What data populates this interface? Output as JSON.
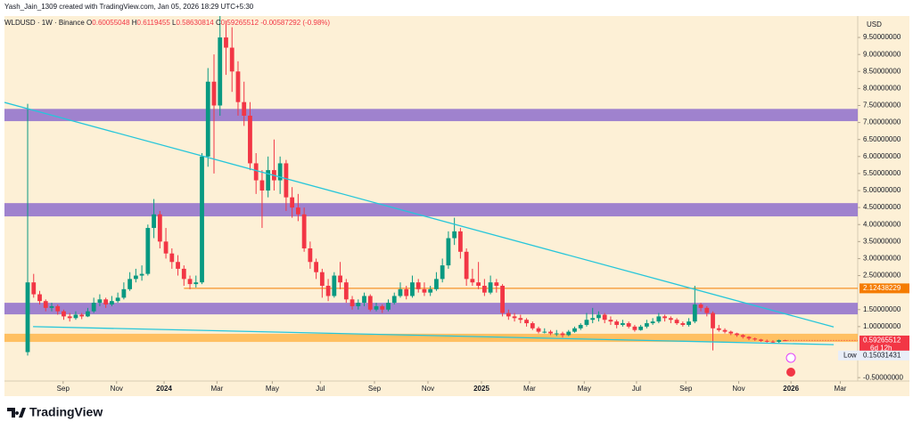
{
  "chart_data": {
    "type": "candlestick",
    "credit": "Yash_Jain_1309 created with TradingView.com, Jan 05, 2026 18:29 UTC+5:30",
    "symbol": "WLDUSD · 1W · Binance",
    "ohlc_labels": [
      "O",
      "H",
      "L",
      "C"
    ],
    "change_label": "-0.00587292 (-0.98%)",
    "currency": "USD",
    "brand": "TradingView",
    "up_color": "#089981",
    "down_color": "#f23645",
    "x": [
      0,
      1,
      2,
      3,
      4,
      5,
      6,
      7,
      8,
      9,
      10,
      11,
      12,
      13,
      14,
      15,
      16,
      17,
      18,
      19,
      20,
      21,
      22,
      23,
      24,
      25,
      26,
      27,
      28,
      29,
      30,
      31,
      32,
      33,
      34,
      35,
      36,
      37,
      38,
      39,
      40,
      41,
      42,
      43,
      44,
      45,
      46,
      47,
      48,
      49,
      50,
      51,
      52,
      53,
      54,
      55,
      56,
      57,
      58,
      59,
      60,
      61,
      62,
      63,
      64,
      65,
      66,
      67,
      68,
      69,
      70,
      71,
      72,
      73,
      74,
      75,
      76,
      77,
      78,
      79,
      80,
      81,
      82,
      83,
      84,
      85,
      86,
      87,
      88,
      89,
      90,
      91,
      92,
      93,
      94,
      95,
      96,
      97,
      98,
      99,
      100,
      101,
      102,
      103,
      104,
      105,
      106,
      107,
      108,
      109,
      110,
      111,
      112,
      113,
      114,
      115,
      116,
      117,
      118,
      119,
      120,
      121,
      122,
      123,
      124,
      125,
      126
    ],
    "ohlc": [
      [
        0.25,
        7.55,
        0.15031431,
        2.3
      ],
      [
        2.3,
        2.55,
        1.85,
        1.95
      ],
      [
        1.95,
        2.05,
        1.65,
        1.75
      ],
      [
        1.75,
        1.8,
        1.45,
        1.55
      ],
      [
        1.55,
        1.7,
        1.45,
        1.6
      ],
      [
        1.6,
        1.65,
        1.35,
        1.45
      ],
      [
        1.45,
        1.5,
        1.2,
        1.3
      ],
      [
        1.3,
        1.4,
        1.15,
        1.25
      ],
      [
        1.25,
        1.45,
        1.2,
        1.35
      ],
      [
        1.35,
        1.4,
        1.22,
        1.3
      ],
      [
        1.3,
        1.55,
        1.28,
        1.45
      ],
      [
        1.45,
        1.85,
        1.4,
        1.7
      ],
      [
        1.7,
        1.95,
        1.6,
        1.8
      ],
      [
        1.8,
        1.85,
        1.55,
        1.65
      ],
      [
        1.65,
        1.9,
        1.6,
        1.75
      ],
      [
        1.75,
        2.0,
        1.7,
        1.85
      ],
      [
        1.85,
        2.3,
        1.8,
        2.1
      ],
      [
        2.1,
        2.6,
        2.05,
        2.4
      ],
      [
        2.4,
        2.7,
        2.3,
        2.5
      ],
      [
        2.5,
        2.8,
        2.35,
        2.55
      ],
      [
        2.55,
        4.0,
        2.5,
        3.9
      ],
      [
        3.9,
        4.75,
        3.6,
        4.3
      ],
      [
        4.3,
        4.4,
        3.3,
        3.5
      ],
      [
        3.5,
        3.9,
        3.0,
        3.15
      ],
      [
        3.15,
        3.3,
        2.7,
        2.9
      ],
      [
        2.9,
        3.1,
        2.5,
        2.7
      ],
      [
        2.7,
        2.8,
        2.2,
        2.4
      ],
      [
        2.4,
        2.5,
        2.1,
        2.25
      ],
      [
        2.25,
        2.5,
        2.15,
        2.3
      ],
      [
        2.3,
        6.1,
        2.25,
        6.0
      ],
      [
        6.0,
        8.6,
        5.7,
        8.2
      ],
      [
        8.2,
        9.0,
        5.5,
        7.5
      ],
      [
        7.5,
        11.5,
        7.2,
        9.5
      ],
      [
        9.5,
        10.0,
        8.4,
        9.2
      ],
      [
        9.2,
        9.8,
        7.9,
        8.5
      ],
      [
        8.5,
        8.8,
        7.2,
        7.6
      ],
      [
        7.6,
        8.2,
        6.9,
        7.2
      ],
      [
        7.2,
        7.6,
        5.6,
        5.8
      ],
      [
        5.8,
        6.1,
        4.9,
        5.3
      ],
      [
        5.3,
        5.6,
        3.9,
        5.0
      ],
      [
        5.0,
        6.0,
        4.8,
        5.6
      ],
      [
        5.6,
        6.5,
        5.0,
        5.3
      ],
      [
        5.3,
        6.0,
        4.9,
        5.8
      ],
      [
        5.8,
        5.9,
        4.4,
        4.8
      ],
      [
        4.8,
        5.1,
        4.2,
        4.5
      ],
      [
        4.5,
        4.9,
        4.1,
        4.3
      ],
      [
        4.3,
        4.5,
        3.2,
        3.3
      ],
      [
        3.3,
        3.5,
        2.7,
        2.9
      ],
      [
        2.9,
        3.0,
        2.4,
        2.6
      ],
      [
        2.6,
        2.7,
        1.85,
        2.2
      ],
      [
        2.2,
        2.4,
        1.75,
        1.9
      ],
      [
        1.9,
        2.6,
        1.85,
        2.5
      ],
      [
        2.5,
        2.9,
        2.1,
        2.3
      ],
      [
        2.3,
        2.4,
        1.7,
        1.8
      ],
      [
        1.8,
        1.9,
        1.5,
        1.6
      ],
      [
        1.6,
        1.8,
        1.5,
        1.7
      ],
      [
        1.7,
        2.0,
        1.6,
        1.9
      ],
      [
        1.9,
        1.95,
        1.45,
        1.5
      ],
      [
        1.5,
        1.7,
        1.45,
        1.6
      ],
      [
        1.6,
        1.65,
        1.4,
        1.5
      ],
      [
        1.5,
        1.8,
        1.45,
        1.7
      ],
      [
        1.7,
        2.0,
        1.65,
        1.9
      ],
      [
        1.9,
        2.3,
        1.85,
        2.1
      ],
      [
        2.1,
        2.2,
        1.8,
        1.9
      ],
      [
        1.9,
        2.5,
        1.85,
        2.3
      ],
      [
        2.3,
        2.4,
        2.0,
        2.1
      ],
      [
        2.1,
        2.3,
        1.9,
        2.0
      ],
      [
        2.0,
        2.2,
        1.9,
        2.1
      ],
      [
        2.1,
        2.6,
        2.05,
        2.4
      ],
      [
        2.4,
        3.0,
        2.3,
        2.8
      ],
      [
        2.8,
        3.8,
        2.7,
        3.6
      ],
      [
        3.6,
        4.2,
        3.4,
        3.8
      ],
      [
        3.8,
        3.9,
        3.0,
        3.2
      ],
      [
        3.2,
        3.3,
        2.2,
        2.4
      ],
      [
        2.4,
        2.7,
        2.2,
        2.3
      ],
      [
        2.3,
        2.9,
        2.1,
        2.2
      ],
      [
        2.2,
        2.4,
        1.9,
        2.0
      ],
      [
        2.0,
        2.5,
        1.95,
        2.3
      ],
      [
        2.3,
        2.4,
        2.0,
        2.2
      ],
      [
        2.2,
        2.25,
        1.3,
        1.4
      ],
      [
        1.4,
        1.5,
        1.2,
        1.3
      ],
      [
        1.3,
        1.4,
        1.15,
        1.25
      ],
      [
        1.25,
        1.35,
        1.1,
        1.2
      ],
      [
        1.2,
        1.25,
        1.0,
        1.1
      ],
      [
        1.1,
        1.15,
        0.9,
        0.95
      ],
      [
        0.95,
        1.0,
        0.8,
        0.85
      ],
      [
        0.85,
        0.95,
        0.8,
        0.85
      ],
      [
        0.85,
        0.9,
        0.75,
        0.8
      ],
      [
        0.8,
        0.9,
        0.72,
        0.8
      ],
      [
        0.8,
        0.85,
        0.68,
        0.75
      ],
      [
        0.75,
        0.9,
        0.72,
        0.85
      ],
      [
        0.85,
        1.0,
        0.82,
        0.95
      ],
      [
        0.95,
        1.1,
        0.9,
        1.05
      ],
      [
        1.05,
        1.4,
        1.0,
        1.2
      ],
      [
        1.2,
        1.55,
        1.1,
        1.25
      ],
      [
        1.25,
        1.45,
        1.15,
        1.35
      ],
      [
        1.35,
        1.4,
        1.1,
        1.2
      ],
      [
        1.2,
        1.3,
        1.05,
        1.15
      ],
      [
        1.15,
        1.2,
        0.95,
        1.05
      ],
      [
        1.05,
        1.2,
        1.0,
        1.1
      ],
      [
        1.1,
        1.15,
        0.95,
        1.0
      ],
      [
        1.0,
        1.05,
        0.85,
        0.9
      ],
      [
        0.9,
        1.05,
        0.88,
        1.0
      ],
      [
        1.0,
        1.2,
        0.95,
        1.1
      ],
      [
        1.1,
        1.25,
        1.05,
        1.15
      ],
      [
        1.15,
        1.4,
        1.1,
        1.3
      ],
      [
        1.3,
        1.35,
        1.15,
        1.25
      ],
      [
        1.25,
        1.3,
        1.1,
        1.2
      ],
      [
        1.2,
        1.25,
        1.05,
        1.1
      ],
      [
        1.1,
        1.15,
        1.0,
        1.05
      ],
      [
        1.05,
        1.25,
        1.0,
        1.15
      ],
      [
        1.15,
        2.2,
        1.1,
        1.65
      ],
      [
        1.65,
        1.7,
        1.45,
        1.55
      ],
      [
        1.55,
        1.6,
        1.3,
        1.4
      ],
      [
        1.4,
        1.45,
        0.3,
        0.95
      ],
      [
        0.95,
        1.05,
        0.85,
        0.9
      ],
      [
        0.9,
        0.95,
        0.8,
        0.85
      ],
      [
        0.85,
        0.88,
        0.75,
        0.8
      ],
      [
        0.8,
        0.82,
        0.7,
        0.75
      ],
      [
        0.75,
        0.78,
        0.65,
        0.7
      ],
      [
        0.7,
        0.72,
        0.6,
        0.65
      ],
      [
        0.65,
        0.68,
        0.58,
        0.62
      ],
      [
        0.62,
        0.64,
        0.55,
        0.58
      ],
      [
        0.58,
        0.62,
        0.53,
        0.56
      ],
      [
        0.56,
        0.6,
        0.52,
        0.55
      ],
      [
        0.55,
        0.62,
        0.52,
        0.6
      ],
      [
        0.60055048,
        0.6119455,
        0.58630814,
        0.59265512
      ]
    ],
    "xlim": [
      -3.86,
      138.1
    ],
    "ylim": [
      -0.6,
      10.13
    ],
    "xticks": [
      {
        "value": 5.9,
        "label": "Sep"
      },
      {
        "value": 14.8,
        "label": "Nov"
      },
      {
        "value": 22.7,
        "label": "2024"
      },
      {
        "value": 31.5,
        "label": "Mar"
      },
      {
        "value": 40.7,
        "label": "May"
      },
      {
        "value": 48.7,
        "label": "Jul"
      },
      {
        "value": 57.7,
        "label": "Sep"
      },
      {
        "value": 66.6,
        "label": "Nov"
      },
      {
        "value": 75.5,
        "label": "2025"
      },
      {
        "value": 83.5,
        "label": "Mar"
      },
      {
        "value": 92.6,
        "label": "May"
      },
      {
        "value": 101.3,
        "label": "Jul"
      },
      {
        "value": 109.5,
        "label": "Sep"
      },
      {
        "value": 118.3,
        "label": "Nov"
      },
      {
        "value": 127.0,
        "label": "2026"
      },
      {
        "value": 135.2,
        "label": "Mar"
      }
    ],
    "yticks": [
      {
        "value": -0.5,
        "label": "-0.50000000"
      },
      {
        "value": 1.0,
        "label": "1.00000000"
      },
      {
        "value": 1.5,
        "label": "1.50000000"
      },
      {
        "value": 2.5,
        "label": "2.50000000"
      },
      {
        "value": 3.0,
        "label": "3.00000000"
      },
      {
        "value": 3.5,
        "label": "3.50000000"
      },
      {
        "value": 4.0,
        "label": "4.00000000"
      },
      {
        "value": 4.5,
        "label": "4.50000000"
      },
      {
        "value": 5.0,
        "label": "5.00000000"
      },
      {
        "value": 5.5,
        "label": "5.50000000"
      },
      {
        "value": 6.0,
        "label": "6.00000000"
      },
      {
        "value": 6.5,
        "label": "6.50000000"
      },
      {
        "value": 7.0,
        "label": "7.00000000"
      },
      {
        "value": 7.5,
        "label": "7.50000000"
      },
      {
        "value": 8.0,
        "label": "8.00000000"
      },
      {
        "value": 8.5,
        "label": "8.50000000"
      },
      {
        "value": 9.0,
        "label": "9.00000000"
      },
      {
        "value": 9.5,
        "label": "9.50000000"
      }
    ],
    "grid": false,
    "zones": [
      {
        "from": 7.04,
        "to": 7.4,
        "color": "#9575cd"
      },
      {
        "from": 4.24,
        "to": 4.63,
        "color": "#9575cd"
      },
      {
        "from": 1.36,
        "to": 1.7,
        "color": "#9575cd"
      },
      {
        "from": 0.55,
        "to": 0.79,
        "color": "#ffb74d"
      }
    ],
    "level": {
      "value": 2.12438229,
      "color": "#f57c00"
    },
    "trendlines": [
      {
        "x": [
          -3.86,
          134.1
        ],
        "y": [
          7.59,
          0.99
        ],
        "color": "#26c6da"
      },
      {
        "x": [
          0.9,
          134.1
        ],
        "y": [
          1.0,
          0.47
        ],
        "color": "#26c6da"
      }
    ],
    "countdown": "6d 12h",
    "low_label": "Low"
  }
}
